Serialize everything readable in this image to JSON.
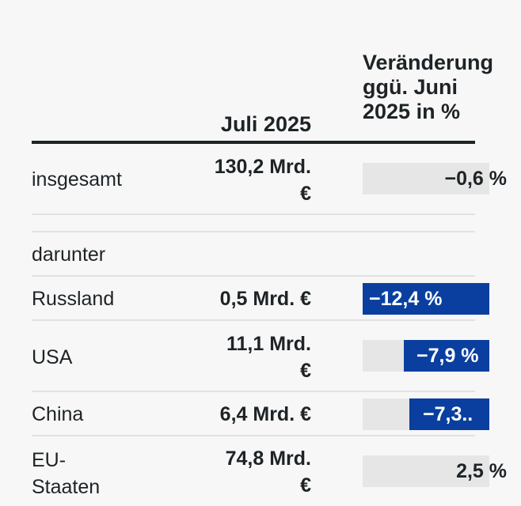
{
  "header": {
    "month": "Juli 2025",
    "change": "Veränderung\nggü. Juni\n2025 in %"
  },
  "rows": [
    {
      "label": "insgesamt",
      "value": "130,2 Mrd.\n€",
      "change": "−0,6 %",
      "change_pct": -0.6
    },
    {
      "label": "darunter"
    },
    {
      "label": "Russland",
      "value": "0,5 Mrd. €",
      "change": "−12,4 %",
      "change_pct": -12.4
    },
    {
      "label": "USA",
      "value": "11,1 Mrd.\n€",
      "change": "−7,9 %",
      "change_pct": -7.9
    },
    {
      "label": "China",
      "value": "6,4 Mrd. €",
      "change": "−7,3..",
      "change_pct": -7.3
    },
    {
      "label": "EU-\nStaaten",
      "value": "74,8 Mrd.\n€",
      "change": "2,5 %",
      "change_pct": 2.5
    }
  ],
  "colors": {
    "bar": "#0a3fa0",
    "bar_bg": "#e6e6e6",
    "text": "#1e2326"
  }
}
